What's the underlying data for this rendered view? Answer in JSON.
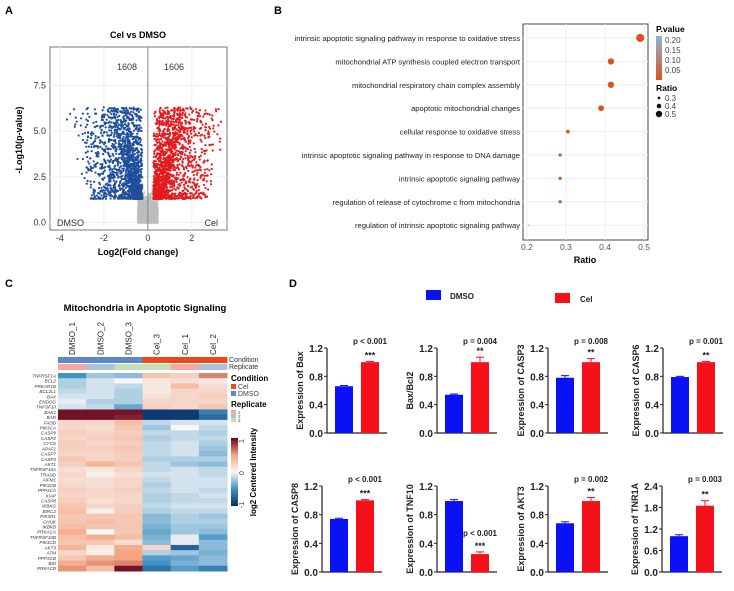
{
  "panels": {
    "A": "A",
    "B": "B",
    "C": "C",
    "D": "D"
  },
  "chart_data": [
    {
      "panel": "A",
      "type": "scatter",
      "title": "Cel vs DMSO",
      "xlabel": "Log2(Fold change)",
      "ylabel": "-Log10(p-value)",
      "xlim": [
        -4.45,
        3.6
      ],
      "ylim": [
        -0.4,
        9.6
      ],
      "xticks": [
        -4,
        -2,
        0,
        2
      ],
      "yticks": [
        0.0,
        2.5,
        5.0,
        7.5
      ],
      "grid": true,
      "annotations": {
        "down_count": "1608",
        "up_count": "1606",
        "left_label": "DMSO",
        "right_label": "Cel"
      },
      "colors": {
        "down": "#1f4e9c",
        "up": "#e41a1c",
        "ns": "#bdbdbd"
      }
    },
    {
      "panel": "B",
      "type": "scatter",
      "xlabel": "Ratio",
      "xlim": [
        0.19,
        0.51
      ],
      "xticks": [
        0.2,
        0.3,
        0.4,
        0.5
      ],
      "grid": true,
      "categories": [
        "intrinsic apoptotic signaling pathway in response to oxidative stress",
        "mitochondrial ATP synthesis coupled electron transport",
        "mitochondrial respiratory chain complex assembly",
        "apoptotic mitochondrial changes",
        "cellular response to oxidative stress",
        "intrinsic apoptotic signaling pathway in response to DNA damage",
        "intrinsic apoptotic signaling pathway",
        "regulation of release of cytochrome c from mitochondria",
        "regulation of intrinsic apoptotic signaling pathway"
      ],
      "ratio": [
        0.49,
        0.415,
        0.415,
        0.39,
        0.305,
        0.285,
        0.285,
        0.285,
        0.205
      ],
      "p_value": [
        0.02,
        0.02,
        0.02,
        0.02,
        0.03,
        0.03,
        0.03,
        0.03,
        0.2
      ],
      "legend": {
        "color_title": "P.value",
        "color_ticks": [
          "0.20",
          "0.15",
          "0.10",
          "0.05"
        ],
        "size_title": "Ratio",
        "size_ticks": [
          "0.3",
          "0.4",
          "0.5"
        ],
        "placement": "right",
        "low_color": "#d9541e",
        "high_color": "#8fb3d6"
      }
    },
    {
      "panel": "C",
      "type": "heatmap",
      "title": "Mitochondria in Apoptotic Signaling",
      "columns": [
        "DMSO_1",
        "DMSO_2",
        "DMSO_3",
        "Cel_3",
        "Cel_1",
        "Cel_2"
      ],
      "condition": [
        "DMSO",
        "DMSO",
        "DMSO",
        "Cel",
        "Cel",
        "Cel"
      ],
      "replicate": [
        "1",
        "2",
        "3",
        "3",
        "1",
        "2"
      ],
      "rows": [
        "TNFRSF1A",
        "BCL2",
        "PRKAR1B",
        "BCL2L1",
        "BAX",
        "ENDOG",
        "TNFSF10",
        "BAK1",
        "BAD",
        "FADD",
        "PIK3CA",
        "CASP9",
        "CASP2",
        "CYCS",
        "APAF1",
        "CASP7",
        "CASP3",
        "AKT1",
        "TNFRSF10A",
        "TRADD",
        "AIFM1",
        "PIK3CB",
        "PPP3CA",
        "XIAP",
        "CASP8",
        "IKBKG",
        "BIRC2",
        "PIK3R1",
        "CHUK",
        "IKBKB",
        "PRKACA",
        "TNFRSF10B",
        "PIK3CD",
        "AKT3",
        "ATM",
        "PPP3CB",
        "BID",
        "PRKACB"
      ],
      "values": [
        [
          -0.5,
          -0.25,
          -0.3,
          0.3,
          0.25,
          0.6
        ],
        [
          -0.2,
          -0.1,
          0.0,
          0.1,
          0.15,
          0.1
        ],
        [
          -0.2,
          -0.1,
          -0.15,
          0.1,
          0.35,
          0.15
        ],
        [
          -0.15,
          -0.1,
          -0.2,
          0.1,
          0.2,
          0.2
        ],
        [
          -0.1,
          -0.1,
          -0.2,
          0.15,
          0.2,
          0.25
        ],
        [
          -0.05,
          -0.2,
          -0.2,
          0.2,
          0.2,
          0.2
        ],
        [
          -0.1,
          -0.15,
          -0.4,
          0.25,
          0.2,
          0.3
        ],
        [
          0.95,
          0.95,
          0.95,
          -0.95,
          -0.95,
          -0.6
        ],
        [
          0.95,
          0.95,
          0.9,
          -0.95,
          -0.95,
          -0.7
        ],
        [
          0.2,
          0.2,
          0.35,
          -0.15,
          -0.1,
          -0.1
        ],
        [
          0.2,
          0.15,
          0.3,
          -0.25,
          0.0,
          -0.15
        ],
        [
          0.25,
          0.2,
          0.25,
          -0.15,
          -0.15,
          -0.2
        ],
        [
          0.2,
          0.25,
          0.3,
          -0.2,
          -0.15,
          -0.15
        ],
        [
          0.25,
          0.2,
          0.25,
          -0.15,
          -0.1,
          -0.2
        ],
        [
          0.25,
          0.25,
          0.3,
          -0.15,
          -0.1,
          -0.25
        ],
        [
          0.2,
          0.2,
          0.25,
          -0.15,
          -0.1,
          -0.3
        ],
        [
          0.3,
          0.2,
          0.25,
          -0.2,
          -0.2,
          -0.2
        ],
        [
          0.25,
          0.4,
          0.3,
          -0.15,
          -0.25,
          -0.3
        ],
        [
          0.15,
          0.1,
          0.2,
          -0.15,
          -0.1,
          -0.15
        ],
        [
          0.2,
          0.05,
          0.15,
          -0.1,
          -0.1,
          -0.15
        ],
        [
          0.15,
          0.15,
          0.2,
          -0.15,
          -0.1,
          -0.1
        ],
        [
          0.2,
          0.15,
          0.2,
          -0.2,
          -0.1,
          -0.1
        ],
        [
          0.25,
          0.2,
          0.25,
          -0.15,
          -0.1,
          -0.15
        ],
        [
          0.2,
          0.2,
          0.2,
          -0.2,
          -0.15,
          -0.1
        ],
        [
          0.25,
          0.15,
          0.2,
          -0.2,
          -0.15,
          -0.15
        ],
        [
          0.3,
          0.2,
          0.25,
          -0.15,
          -0.1,
          -0.1
        ],
        [
          0.35,
          0.05,
          0.25,
          -0.2,
          -0.15,
          -0.15
        ],
        [
          0.3,
          0.3,
          0.3,
          -0.3,
          -0.2,
          -0.25
        ],
        [
          0.3,
          0.35,
          0.3,
          -0.3,
          -0.2,
          -0.2
        ],
        [
          0.35,
          0.3,
          0.3,
          -0.35,
          -0.25,
          -0.25
        ],
        [
          0.45,
          0.0,
          0.3,
          -0.4,
          -0.25,
          -0.3
        ],
        [
          0.35,
          0.45,
          0.35,
          -0.35,
          -0.05,
          -0.45
        ],
        [
          0.3,
          0.3,
          0.15,
          -0.3,
          -0.05,
          -0.3
        ],
        [
          0.4,
          0.1,
          0.45,
          0.2,
          -0.75,
          -0.3
        ],
        [
          0.2,
          0.05,
          0.5,
          -0.2,
          -0.25,
          -0.35
        ],
        [
          0.3,
          0.45,
          0.5,
          -0.45,
          -0.4,
          -0.3
        ],
        [
          0.45,
          0.55,
          0.6,
          -0.5,
          -0.35,
          -0.3
        ],
        [
          0.55,
          0.35,
          0.95,
          -0.65,
          -0.45,
          -0.6
        ]
      ],
      "legend": {
        "condition_title": "Condition",
        "condition_labels": [
          "Cel",
          "DMSO"
        ],
        "replicate_title": "Replicate",
        "replicate_labels": [
          "1",
          "2",
          "3"
        ],
        "scale_title": "log2 Centered Intensity",
        "scale_ticks": [
          "1",
          "0",
          "-1"
        ],
        "annotation_labels": [
          "Condition",
          "Replicate"
        ],
        "colors": {
          "Cel": "#f0471a",
          "DMSO": "#5b88c6",
          "rep1": "#f2a9a1",
          "rep2": "#a9c3df",
          "rep3": "#c5e0b4"
        }
      }
    },
    {
      "panel": "D",
      "type": "bar",
      "legend": [
        "DMSO",
        "Cel"
      ],
      "colors": {
        "DMSO": "#0a12f5",
        "Cel": "#f5101a"
      },
      "charts": [
        {
          "ylabel": "Expression of Bax",
          "yticks": [
            "0.0",
            "0.4",
            "0.8",
            "1.2"
          ],
          "ymax": 1.2,
          "values": [
            0.66,
            1.0
          ],
          "errors": [
            0.01,
            0.01
          ],
          "p": "p < 0.001",
          "stars": "***"
        },
        {
          "ylabel": "Bax/Bcl2",
          "yticks": [
            "0.0",
            "0.4",
            "0.8",
            "1.2"
          ],
          "ymax": 1.2,
          "values": [
            0.54,
            1.0
          ],
          "errors": [
            0.01,
            0.07
          ],
          "p": "p = 0.004",
          "stars": "**"
        },
        {
          "ylabel": "Expression of CASP3",
          "yticks": [
            "0.0",
            "0.4",
            "0.8",
            "1.2"
          ],
          "ymax": 1.2,
          "values": [
            0.78,
            1.0
          ],
          "errors": [
            0.03,
            0.05
          ],
          "p": "p = 0.008",
          "stars": "**"
        },
        {
          "ylabel": "Expression of CASP6",
          "yticks": [
            "0.0",
            "0.4",
            "0.8",
            "1.2"
          ],
          "ymax": 1.2,
          "values": [
            0.79,
            1.0
          ],
          "errors": [
            0.01,
            0.01
          ],
          "p": "p = 0.001",
          "stars": "**"
        },
        {
          "ylabel": "Expression of CASP8",
          "yticks": [
            "0.0",
            "0.4",
            "0.8",
            "1.2"
          ],
          "ymax": 1.2,
          "values": [
            0.74,
            1.0
          ],
          "errors": [
            0.01,
            0.01
          ],
          "p": "p < 0.001",
          "stars": "***"
        },
        {
          "ylabel": "Expression of TNF10",
          "yticks": [
            "0.0",
            "0.4",
            "0.8",
            "1.2"
          ],
          "ymax": 1.2,
          "values": [
            0.99,
            0.25
          ],
          "errors": [
            0.02,
            0.03
          ],
          "p": "p < 0.001",
          "stars": "***"
        },
        {
          "ylabel": "Expression of AKT3",
          "yticks": [
            "0.0",
            "0.4",
            "0.8",
            "1.2"
          ],
          "ymax": 1.2,
          "values": [
            0.68,
            0.99
          ],
          "errors": [
            0.02,
            0.05
          ],
          "p": "p = 0.002",
          "stars": "**"
        },
        {
          "ylabel": "Expression of TNR1A",
          "yticks": [
            "0.0",
            "0.6",
            "1.2",
            "1.8",
            "2.4"
          ],
          "ymax": 2.4,
          "values": [
            1.0,
            1.85
          ],
          "errors": [
            0.04,
            0.14
          ],
          "p": "p = 0.003",
          "stars": "**"
        }
      ]
    }
  ]
}
